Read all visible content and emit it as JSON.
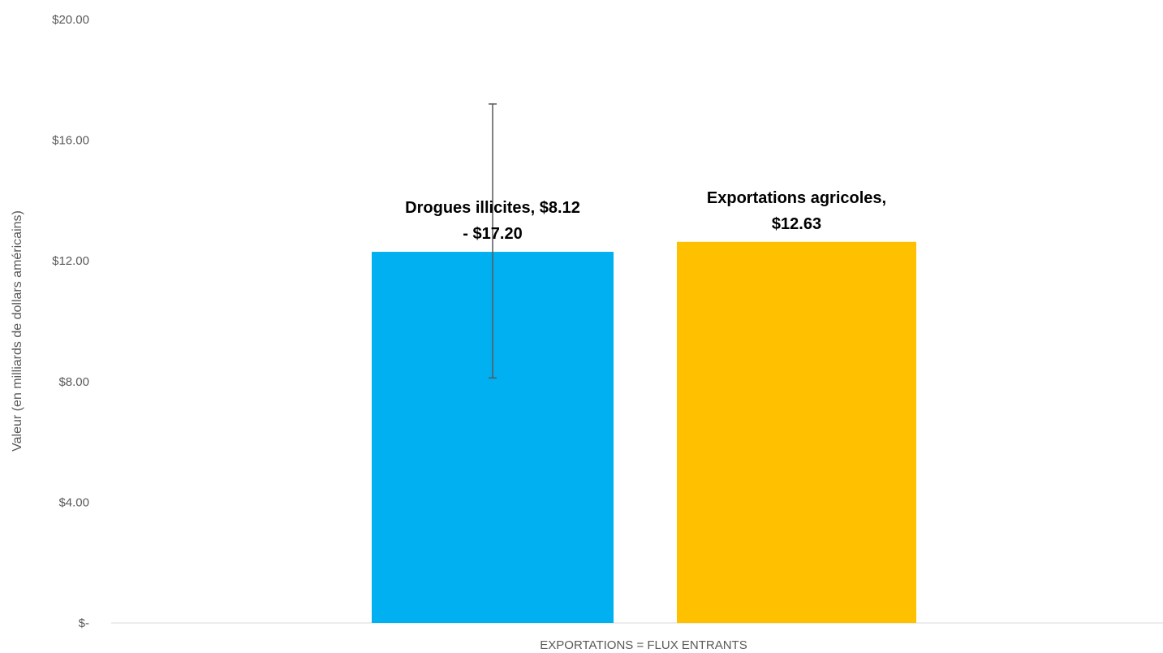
{
  "chart_data": {
    "type": "bar",
    "title": "",
    "xlabel": "EXPORTATIONS = FLUX ENTRANTS",
    "ylabel": "Valeur (en milliards de dollars américains)",
    "ylim": [
      0,
      20
    ],
    "yticks": [
      0,
      4,
      8,
      12,
      16,
      20
    ],
    "ytick_labels": [
      "$-",
      "$4.00",
      "$8.00",
      "$12.00",
      "$16.00",
      "$20.00"
    ],
    "grid": false,
    "legend": "none",
    "categories": [
      "EXPORTATIONS = FLUX ENTRANTS"
    ],
    "series": [
      {
        "value": 12.3,
        "error_range": [
          8.12,
          17.2
        ],
        "color": "#00B0F0",
        "label_lines": [
          "Drogues illicites, $8.12",
          "- $17.20"
        ]
      },
      {
        "value": 12.63,
        "color": "#FFC000",
        "label_lines": [
          "Exportations agricoles,",
          "$12.63"
        ]
      }
    ],
    "error_bar_color": "#595959",
    "axis_color": "#D9D9D9"
  }
}
